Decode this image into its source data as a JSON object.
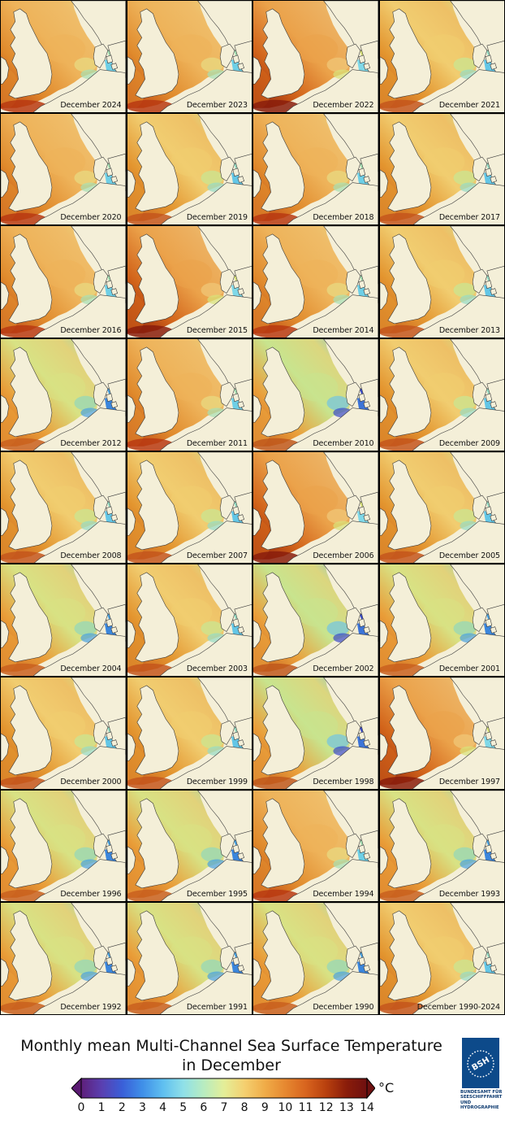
{
  "tiles": [
    {
      "label": "December 2024",
      "palette": "warm"
    },
    {
      "label": "December 2023",
      "palette": "warm"
    },
    {
      "label": "December 2022",
      "palette": "hot"
    },
    {
      "label": "December 2021",
      "palette": "mild"
    },
    {
      "label": "December 2020",
      "palette": "warm"
    },
    {
      "label": "December 2019",
      "palette": "mild"
    },
    {
      "label": "December 2018",
      "palette": "warm"
    },
    {
      "label": "December 2017",
      "palette": "mild"
    },
    {
      "label": "December 2016",
      "palette": "warm"
    },
    {
      "label": "December 2015",
      "palette": "hot"
    },
    {
      "label": "December 2014",
      "palette": "warm"
    },
    {
      "label": "December 2013",
      "palette": "mild"
    },
    {
      "label": "December 2012",
      "palette": "cool"
    },
    {
      "label": "December 2011",
      "palette": "warm"
    },
    {
      "label": "December 2010",
      "palette": "cold"
    },
    {
      "label": "December 2009",
      "palette": "mild"
    },
    {
      "label": "December 2008",
      "palette": "mild"
    },
    {
      "label": "December 2007",
      "palette": "mild"
    },
    {
      "label": "December 2006",
      "palette": "hot"
    },
    {
      "label": "December 2005",
      "palette": "mild"
    },
    {
      "label": "December 2004",
      "palette": "cool"
    },
    {
      "label": "December 2003",
      "palette": "mild"
    },
    {
      "label": "December 2002",
      "palette": "cold"
    },
    {
      "label": "December 2001",
      "palette": "cool"
    },
    {
      "label": "December 2000",
      "palette": "mild"
    },
    {
      "label": "December 1999",
      "palette": "mild"
    },
    {
      "label": "December 1998",
      "palette": "cold"
    },
    {
      "label": "December 1997",
      "palette": "hot"
    },
    {
      "label": "December 1996",
      "palette": "cool"
    },
    {
      "label": "December 1995",
      "palette": "cool"
    },
    {
      "label": "December 1994",
      "palette": "warm"
    },
    {
      "label": "December 1993",
      "palette": "cool"
    },
    {
      "label": "December 1992",
      "palette": "cool"
    },
    {
      "label": "December 1991",
      "palette": "cool"
    },
    {
      "label": "December 1990",
      "palette": "cool"
    },
    {
      "label": "December 1990-2024",
      "palette": "mild"
    }
  ],
  "palettes": {
    "hot": {
      "west": "#d2641a",
      "channel": "#8a1d0c",
      "center": "#eba24a",
      "north": "#ecb060",
      "east": "#f0c474",
      "kattegat": "#d9e279",
      "baltic": "#7fd8e8"
    },
    "warm": {
      "west": "#e08a2c",
      "channel": "#b83a12",
      "center": "#eeb35a",
      "north": "#efbc68",
      "east": "#e9d77e",
      "kattegat": "#a7e0b4",
      "baltic": "#6ecfe6"
    },
    "mild": {
      "west": "#e3952f",
      "channel": "#c4561c",
      "center": "#f1cd70",
      "north": "#eec066",
      "east": "#cde48e",
      "kattegat": "#96dcc4",
      "baltic": "#63c6e6"
    },
    "cool": {
      "west": "#e99d38",
      "channel": "#c9601e",
      "center": "#d8e284",
      "north": "#e2d27a",
      "east": "#9ad8b4",
      "kattegat": "#4aa2e0",
      "baltic": "#3b86dc"
    },
    "cold": {
      "west": "#ea9f3a",
      "channel": "#c0581c",
      "center": "#c8e48e",
      "north": "#dcd67e",
      "east": "#7cc8d8",
      "kattegat": "#3a4cc8",
      "baltic": "#3c74d8"
    }
  },
  "title": {
    "line1": "Monthly mean Multi-Channel Sea Surface Temperature",
    "line2": "in December"
  },
  "colorbar": {
    "unit": "°C",
    "ticks": [
      "0",
      "1",
      "2",
      "3",
      "4",
      "5",
      "6",
      "7",
      "8",
      "9",
      "10",
      "11",
      "12",
      "13",
      "14"
    ],
    "min": 0,
    "max": 14,
    "under_color": "#5a1a72",
    "over_color": "#6e1010",
    "stops": [
      "#5e1f7a",
      "#5a3fb0",
      "#3a5fd8",
      "#3f8fe8",
      "#5fbff0",
      "#8fe0e8",
      "#b8ecc0",
      "#e4ee98",
      "#f4d070",
      "#f0ac48",
      "#e68830",
      "#d8641e",
      "#b8400e",
      "#8a1c0a",
      "#6e1010"
    ]
  },
  "logo": {
    "text": "BSH",
    "lines": [
      "BUNDESAMT FÜR",
      "SEESCHIFFFAHRT",
      "UND",
      "HYDROGRAPHIE"
    ]
  }
}
